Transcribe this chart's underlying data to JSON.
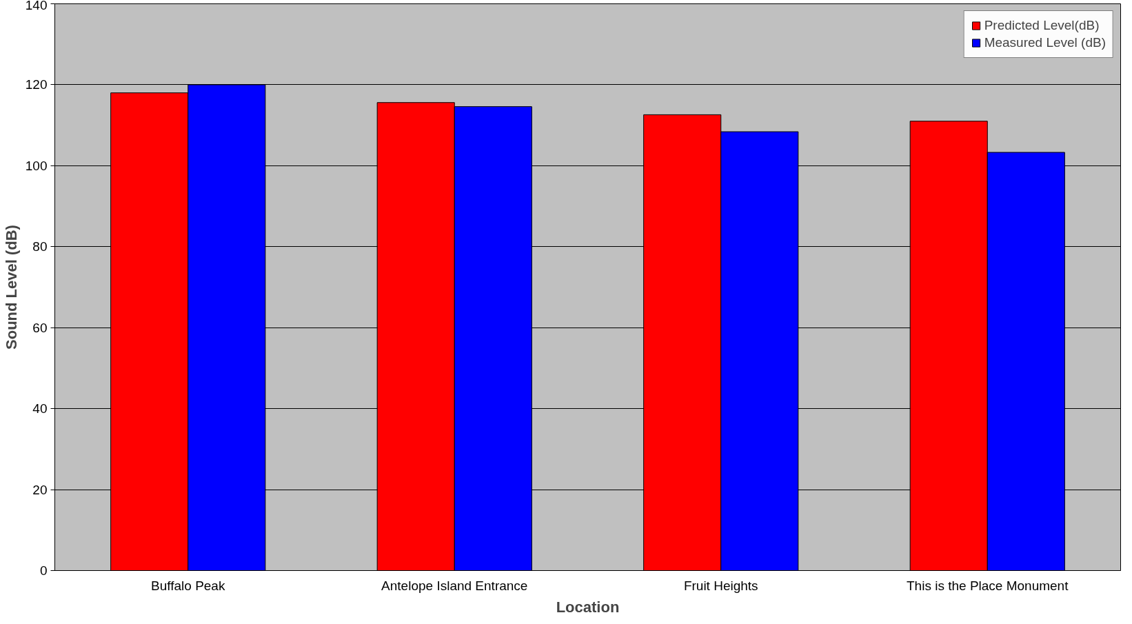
{
  "chart_data": {
    "type": "bar",
    "xlabel": "Location",
    "ylabel": "Sound Level (dB)",
    "categories": [
      "Buffalo Peak",
      "Antelope Island Entrance",
      "Fruit Heights",
      "This is the Place Monument"
    ],
    "series": [
      {
        "name": "Predicted Level(dB)",
        "color": "#ff0000",
        "values": [
          118.0,
          115.6,
          112.6,
          111.0
        ]
      },
      {
        "name": "Measured Level (dB)",
        "color": "#0000ff",
        "values": [
          120.0,
          114.6,
          108.4,
          103.3
        ]
      }
    ],
    "ylim": [
      0,
      140
    ],
    "yticks": [
      0,
      20,
      40,
      60,
      80,
      100,
      120,
      140
    ],
    "grid": "y",
    "legend": "top right"
  }
}
